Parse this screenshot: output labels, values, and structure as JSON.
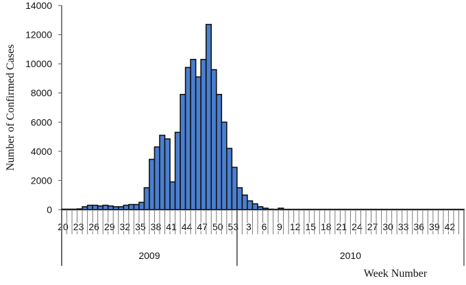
{
  "chart_data": {
    "type": "bar",
    "y_label": "Number of Confirmed Cases",
    "x_label": "Week Number",
    "categories": [
      "20",
      null,
      null,
      "23",
      null,
      null,
      "26",
      null,
      null,
      "29",
      null,
      null,
      "32",
      null,
      null,
      "35",
      null,
      null,
      "38",
      null,
      null,
      "41",
      null,
      null,
      "44",
      null,
      null,
      "47",
      null,
      null,
      "50",
      null,
      null,
      "53",
      null,
      null,
      "3",
      null,
      null,
      "6",
      null,
      null,
      "9",
      null,
      null,
      "12",
      null,
      null,
      "15",
      null,
      null,
      "18",
      null,
      null,
      "21",
      null,
      null,
      "24",
      null,
      null,
      "27",
      null,
      null,
      "30",
      null,
      null,
      "33",
      null,
      null,
      "36",
      null,
      null,
      "39",
      null,
      null,
      "42",
      null,
      null
    ],
    "values": [
      30,
      30,
      30,
      50,
      200,
      300,
      300,
      250,
      300,
      250,
      200,
      200,
      300,
      350,
      350,
      500,
      1500,
      3450,
      4300,
      5100,
      4850,
      1900,
      5300,
      7900,
      9750,
      10300,
      9100,
      10300,
      12700,
      9600,
      7900,
      6000,
      4200,
      2900,
      1500,
      1000,
      600,
      400,
      200,
      100,
      30,
      20,
      100,
      20,
      20,
      20,
      20,
      20,
      20,
      20,
      20,
      20,
      20,
      20,
      20,
      20,
      20,
      20,
      20,
      20,
      20,
      20,
      20,
      20,
      20,
      20,
      20,
      20,
      20,
      20,
      20,
      20,
      20,
      20,
      20,
      20,
      20,
      20
    ],
    "groups": [
      {
        "name": "2009",
        "count": 34
      },
      {
        "name": "2010",
        "count": 44
      }
    ],
    "color": "#4a7fd0",
    "ylim": [
      0,
      14000
    ],
    "yticks": [
      0,
      2000,
      4000,
      6000,
      8000,
      10000,
      12000,
      14000
    ]
  }
}
